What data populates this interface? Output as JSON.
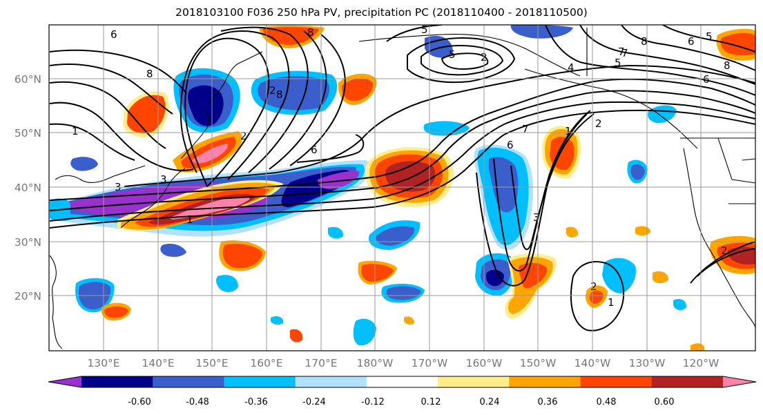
{
  "title": "2018103100 F036 250 hPa PV, precipitation PC (2018110400 - 2018110500)",
  "lat_labels": [
    "60°N",
    "50°N",
    "40°N",
    "30°N",
    "20°N"
  ],
  "lon_labels": [
    "130°E",
    "140°E",
    "150°E",
    "160°E",
    "170°E",
    "180°W",
    "170°W",
    "160°W",
    "150°W",
    "140°W",
    "130°W",
    "120°W"
  ],
  "colorbar": {
    "colors": [
      "#9932cc",
      "#00008b",
      "#3a5fcd",
      "#00bfff",
      "#b0e2ff",
      "#ffffff",
      "#ffec8b",
      "#ffa500",
      "#ff4500",
      "#b22222",
      "#ff82ab"
    ],
    "tick_labels": [
      "-0.60",
      "-0.48",
      "-0.36",
      "-0.24",
      "-0.12",
      "0.12",
      "0.24",
      "0.36",
      "0.48",
      "0.60"
    ]
  },
  "contour_labels": [
    "6",
    "8",
    "5",
    "2",
    "5",
    "7",
    "8",
    "6",
    "5",
    "4",
    "5",
    "7",
    "8",
    "6",
    "1",
    "2",
    "8",
    "2",
    "6",
    "3",
    "3",
    "1",
    "6",
    "8",
    "7",
    "1",
    "3",
    "2",
    "1",
    "2",
    "2"
  ]
}
